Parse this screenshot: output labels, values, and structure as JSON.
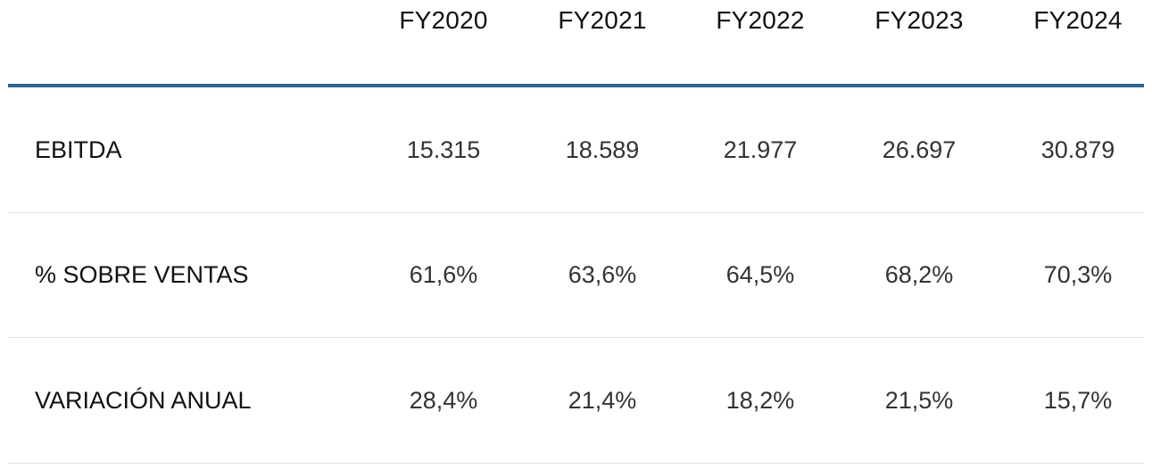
{
  "table": {
    "columns": [
      "FY2020",
      "FY2021",
      "FY2022",
      "FY2023",
      "FY2024"
    ],
    "rows": [
      {
        "label": "EBITDA",
        "values": [
          "15.315",
          "18.589",
          "21.977",
          "26.697",
          "30.879"
        ]
      },
      {
        "label": "% SOBRE VENTAS",
        "values": [
          "61,6%",
          "63,6%",
          "64,5%",
          "68,2%",
          "70,3%"
        ]
      },
      {
        "label": "VARIACIÓN ANUAL",
        "values": [
          "28,4%",
          "21,4%",
          "18,2%",
          "21,5%",
          "15,7%"
        ]
      }
    ]
  },
  "colors": {
    "header_rule": "#2a6496",
    "row_divider": "#e3e3e3"
  }
}
